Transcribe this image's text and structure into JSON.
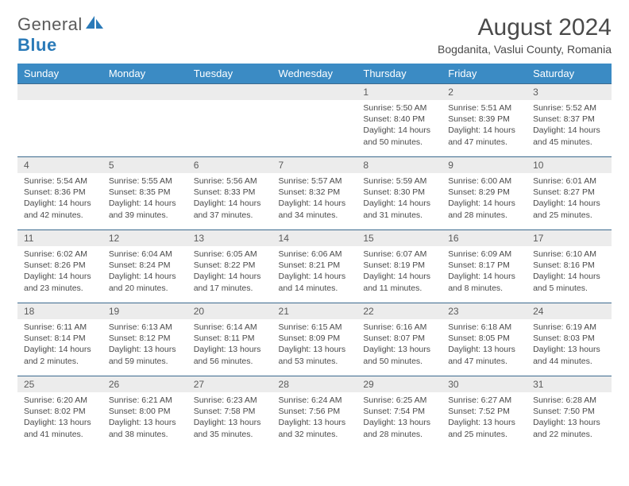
{
  "logo": {
    "text_a": "General",
    "text_b": "Blue"
  },
  "title": "August 2024",
  "location": "Bogdanita, Vaslui County, Romania",
  "colors": {
    "header_bg": "#3b8bc4",
    "header_text": "#ffffff",
    "daynum_bg": "#ececec",
    "rule": "#3b6a8e",
    "logo_blue": "#2a7ab8",
    "text_gray": "#4a4a4a"
  },
  "day_headers": [
    "Sunday",
    "Monday",
    "Tuesday",
    "Wednesday",
    "Thursday",
    "Friday",
    "Saturday"
  ],
  "weeks": [
    [
      null,
      null,
      null,
      null,
      {
        "n": "1",
        "sr": "5:50 AM",
        "ss": "8:40 PM",
        "dl": "14 hours and 50 minutes."
      },
      {
        "n": "2",
        "sr": "5:51 AM",
        "ss": "8:39 PM",
        "dl": "14 hours and 47 minutes."
      },
      {
        "n": "3",
        "sr": "5:52 AM",
        "ss": "8:37 PM",
        "dl": "14 hours and 45 minutes."
      }
    ],
    [
      {
        "n": "4",
        "sr": "5:54 AM",
        "ss": "8:36 PM",
        "dl": "14 hours and 42 minutes."
      },
      {
        "n": "5",
        "sr": "5:55 AM",
        "ss": "8:35 PM",
        "dl": "14 hours and 39 minutes."
      },
      {
        "n": "6",
        "sr": "5:56 AM",
        "ss": "8:33 PM",
        "dl": "14 hours and 37 minutes."
      },
      {
        "n": "7",
        "sr": "5:57 AM",
        "ss": "8:32 PM",
        "dl": "14 hours and 34 minutes."
      },
      {
        "n": "8",
        "sr": "5:59 AM",
        "ss": "8:30 PM",
        "dl": "14 hours and 31 minutes."
      },
      {
        "n": "9",
        "sr": "6:00 AM",
        "ss": "8:29 PM",
        "dl": "14 hours and 28 minutes."
      },
      {
        "n": "10",
        "sr": "6:01 AM",
        "ss": "8:27 PM",
        "dl": "14 hours and 25 minutes."
      }
    ],
    [
      {
        "n": "11",
        "sr": "6:02 AM",
        "ss": "8:26 PM",
        "dl": "14 hours and 23 minutes."
      },
      {
        "n": "12",
        "sr": "6:04 AM",
        "ss": "8:24 PM",
        "dl": "14 hours and 20 minutes."
      },
      {
        "n": "13",
        "sr": "6:05 AM",
        "ss": "8:22 PM",
        "dl": "14 hours and 17 minutes."
      },
      {
        "n": "14",
        "sr": "6:06 AM",
        "ss": "8:21 PM",
        "dl": "14 hours and 14 minutes."
      },
      {
        "n": "15",
        "sr": "6:07 AM",
        "ss": "8:19 PM",
        "dl": "14 hours and 11 minutes."
      },
      {
        "n": "16",
        "sr": "6:09 AM",
        "ss": "8:17 PM",
        "dl": "14 hours and 8 minutes."
      },
      {
        "n": "17",
        "sr": "6:10 AM",
        "ss": "8:16 PM",
        "dl": "14 hours and 5 minutes."
      }
    ],
    [
      {
        "n": "18",
        "sr": "6:11 AM",
        "ss": "8:14 PM",
        "dl": "14 hours and 2 minutes."
      },
      {
        "n": "19",
        "sr": "6:13 AM",
        "ss": "8:12 PM",
        "dl": "13 hours and 59 minutes."
      },
      {
        "n": "20",
        "sr": "6:14 AM",
        "ss": "8:11 PM",
        "dl": "13 hours and 56 minutes."
      },
      {
        "n": "21",
        "sr": "6:15 AM",
        "ss": "8:09 PM",
        "dl": "13 hours and 53 minutes."
      },
      {
        "n": "22",
        "sr": "6:16 AM",
        "ss": "8:07 PM",
        "dl": "13 hours and 50 minutes."
      },
      {
        "n": "23",
        "sr": "6:18 AM",
        "ss": "8:05 PM",
        "dl": "13 hours and 47 minutes."
      },
      {
        "n": "24",
        "sr": "6:19 AM",
        "ss": "8:03 PM",
        "dl": "13 hours and 44 minutes."
      }
    ],
    [
      {
        "n": "25",
        "sr": "6:20 AM",
        "ss": "8:02 PM",
        "dl": "13 hours and 41 minutes."
      },
      {
        "n": "26",
        "sr": "6:21 AM",
        "ss": "8:00 PM",
        "dl": "13 hours and 38 minutes."
      },
      {
        "n": "27",
        "sr": "6:23 AM",
        "ss": "7:58 PM",
        "dl": "13 hours and 35 minutes."
      },
      {
        "n": "28",
        "sr": "6:24 AM",
        "ss": "7:56 PM",
        "dl": "13 hours and 32 minutes."
      },
      {
        "n": "29",
        "sr": "6:25 AM",
        "ss": "7:54 PM",
        "dl": "13 hours and 28 minutes."
      },
      {
        "n": "30",
        "sr": "6:27 AM",
        "ss": "7:52 PM",
        "dl": "13 hours and 25 minutes."
      },
      {
        "n": "31",
        "sr": "6:28 AM",
        "ss": "7:50 PM",
        "dl": "13 hours and 22 minutes."
      }
    ]
  ],
  "labels": {
    "sunrise": "Sunrise:",
    "sunset": "Sunset:",
    "daylight": "Daylight:"
  }
}
